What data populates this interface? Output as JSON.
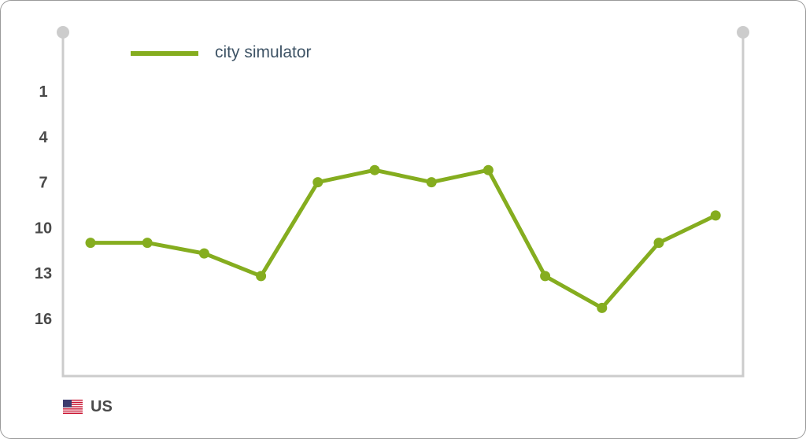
{
  "chart_data": {
    "type": "line",
    "x": [
      1,
      2,
      3,
      4,
      5,
      6,
      7,
      8,
      9,
      10,
      11,
      12
    ],
    "series": [
      {
        "name": "city simulator",
        "values": [
          11,
          11,
          11.7,
          13.2,
          7,
          6.2,
          7,
          6.2,
          13.2,
          15.3,
          11,
          9.2
        ]
      }
    ],
    "y_ticks": [
      "1",
      "4",
      "7",
      "10",
      "13",
      "16"
    ],
    "y_reversed": true,
    "ylim": [
      -2.9,
      19.8
    ],
    "grid": false,
    "legend_position": "top-left",
    "line_color": "#85ad1f",
    "axis_color": "#cccccc"
  },
  "country": {
    "label": "US",
    "flag_icon": "us-flag-icon"
  }
}
